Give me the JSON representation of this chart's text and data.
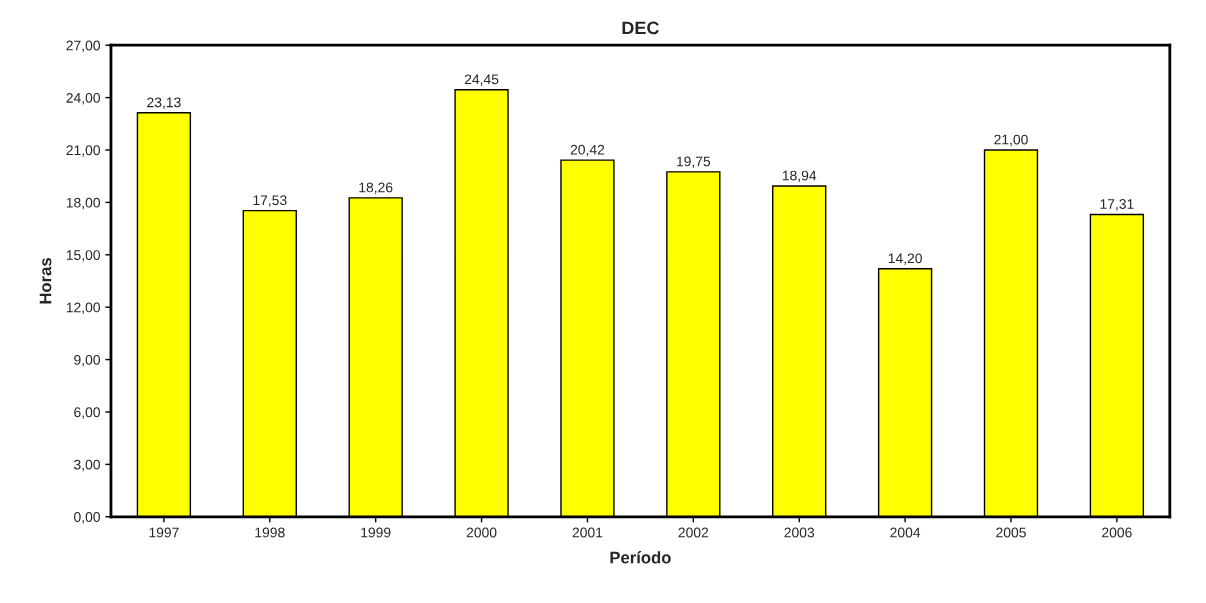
{
  "chart_data": {
    "type": "bar",
    "title": "DEC",
    "xlabel": "Período",
    "ylabel": "Horas",
    "categories": [
      "1997",
      "1998",
      "1999",
      "2000",
      "2001",
      "2002",
      "2003",
      "2004",
      "2005",
      "2006"
    ],
    "values": [
      23.13,
      17.53,
      18.26,
      24.45,
      20.42,
      19.75,
      18.94,
      14.2,
      21.0,
      17.31
    ],
    "value_labels": [
      "23,13",
      "17,53",
      "18,26",
      "24,45",
      "20,42",
      "19,75",
      "18,94",
      "14,20",
      "21,00",
      "17,31"
    ],
    "color": "#ffff00",
    "ylim": [
      0,
      27
    ],
    "yticks": [
      {
        "value": 0,
        "label": "0,00"
      },
      {
        "value": 3,
        "label": "3,00"
      },
      {
        "value": 6,
        "label": "6,00"
      },
      {
        "value": 9,
        "label": "9,00"
      },
      {
        "value": 12,
        "label": "12,00"
      },
      {
        "value": 15,
        "label": "15,00"
      },
      {
        "value": 18,
        "label": "18,00"
      },
      {
        "value": 21,
        "label": "21,00"
      },
      {
        "value": 24,
        "label": "24,00"
      },
      {
        "value": 27,
        "label": "27,00"
      }
    ],
    "grid": false,
    "legend": false
  }
}
